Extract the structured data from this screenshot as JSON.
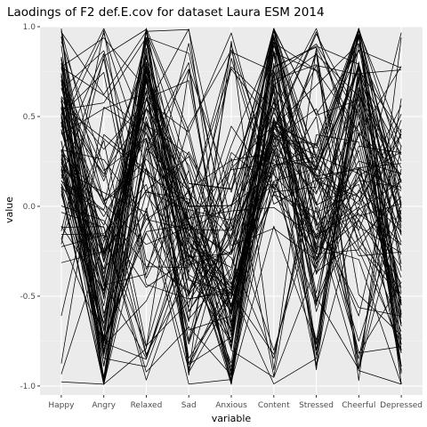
{
  "chart_data": {
    "type": "line",
    "title": "Laodings of F2 def.E.cov for dataset Laura ESM 2014",
    "xlabel": "variable",
    "ylabel": "value",
    "categories": [
      "Happy",
      "Angry",
      "Relaxed",
      "Sad",
      "Anxious",
      "Content",
      "Stressed",
      "Cheerful",
      "Depressed"
    ],
    "ylim": [
      -1.05,
      1.0
    ],
    "yticks": [
      -1.0,
      -0.5,
      0.0,
      0.5,
      1.0
    ],
    "ytick_labels": [
      "-1.0",
      "-0.5",
      "0.0",
      "0.5",
      "1.0"
    ],
    "grid": true,
    "legend": "none",
    "series_count": 100,
    "series_sample": [
      {
        "values": [
          0.98,
          -0.99,
          0.88,
          -0.94,
          0.92,
          -0.91,
          0.88,
          -0.97,
          0.94
        ]
      },
      {
        "values": [
          0.55,
          -0.62,
          0.72,
          -0.2,
          -0.45,
          0.6,
          -0.55,
          0.65,
          -0.8
        ]
      },
      {
        "values": [
          0.3,
          0.85,
          -0.4,
          0.1,
          -0.7,
          0.95,
          -0.3,
          0.4,
          -0.2
        ]
      },
      {
        "values": [
          -0.61,
          0.4,
          0.2,
          -0.5,
          0.3,
          0.1,
          0.5,
          -0.9,
          0.6
        ]
      },
      {
        "values": [
          0.7,
          -0.3,
          0.6,
          0.7,
          -0.6,
          0.4,
          -0.8,
          0.7,
          -0.92
        ]
      },
      {
        "values": [
          -0.21,
          0.98,
          -0.35,
          0.2,
          -0.72,
          0.55,
          0.2,
          0.95,
          -0.6
        ]
      }
    ],
    "colors": {
      "panel": "#ebebeb",
      "grid_major": "#ffffff",
      "grid_minor": "#f5f5f5",
      "line": "#000000"
    }
  }
}
